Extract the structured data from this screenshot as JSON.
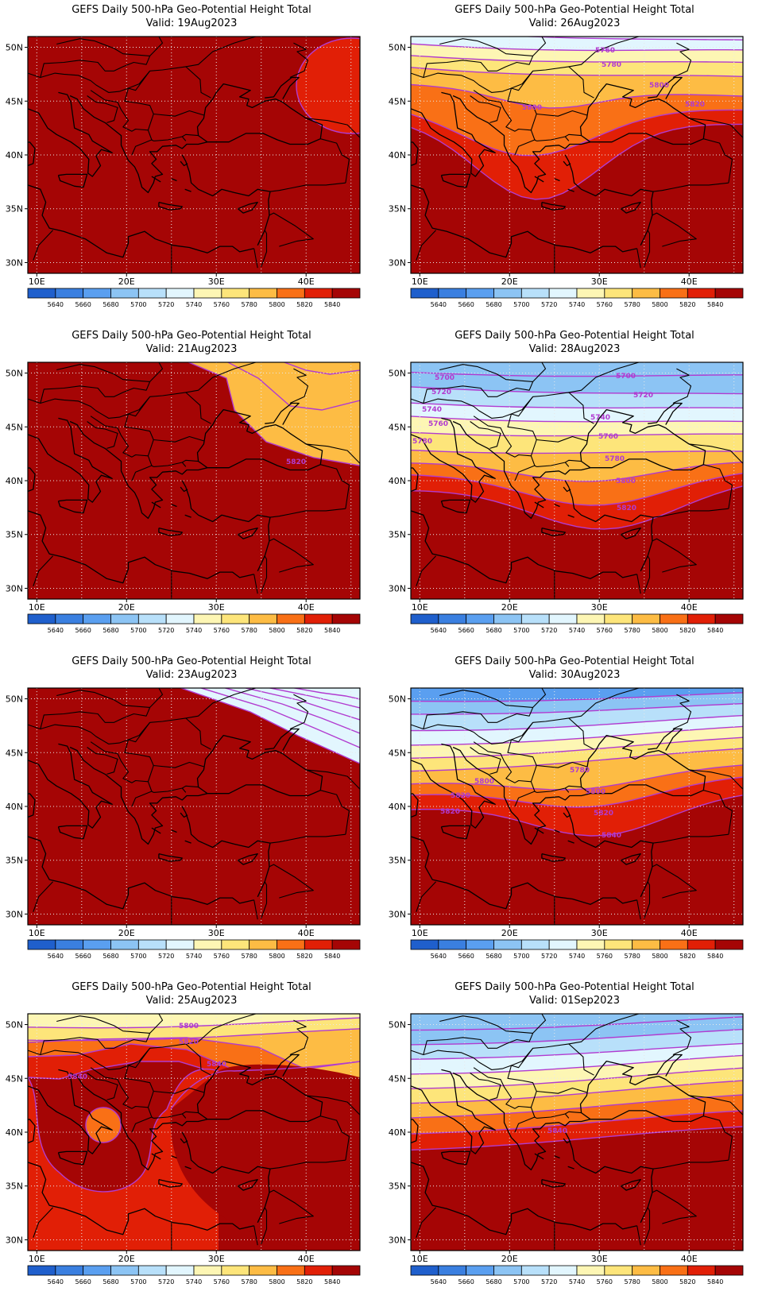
{
  "panels": [
    {
      "title": "GEFS Daily 500-hPa Geo-Potential Height Total",
      "valid": "Valid: 19Aug2023",
      "contour_labels": []
    },
    {
      "title": "GEFS Daily 500-hPa Geo-Potential Height Total",
      "valid": "Valid: 26Aug2023",
      "contour_labels": [
        "5760",
        "5780",
        "5800",
        "5800",
        "5820"
      ]
    },
    {
      "title": "GEFS Daily 500-hPa Geo-Potential Height Total",
      "valid": "Valid: 21Aug2023",
      "contour_labels": [
        "5820"
      ]
    },
    {
      "title": "GEFS Daily 500-hPa Geo-Potential Height Total",
      "valid": "Valid: 28Aug2023",
      "contour_labels": [
        "5700",
        "5700",
        "5720",
        "5720",
        "5740",
        "5740",
        "5760",
        "5760",
        "5780",
        "5780",
        "5800",
        "5820"
      ]
    },
    {
      "title": "GEFS Daily 500-hPa Geo-Potential Height Total",
      "valid": "Valid: 23Aug2023",
      "contour_labels": []
    },
    {
      "title": "GEFS Daily 500-hPa Geo-Potential Height Total",
      "valid": "Valid: 30Aug2023",
      "contour_labels": [
        "5780",
        "5800",
        "5800",
        "5820",
        "5820",
        "5820",
        "5840"
      ]
    },
    {
      "title": "GEFS Daily 500-hPa Geo-Potential Height Total",
      "valid": "Valid: 25Aug2023",
      "contour_labels": [
        "5800",
        "5820",
        "5840",
        "5840"
      ]
    },
    {
      "title": "GEFS Daily 500-hPa Geo-Potential Height Total",
      "valid": "Valid: 01Sep2023",
      "contour_labels": [
        "5840"
      ]
    }
  ],
  "axes": {
    "lat_labels": [
      "50N",
      "45N",
      "40N",
      "35N",
      "30N"
    ],
    "lon_labels": [
      "10E",
      "20E",
      "30E",
      "40E"
    ]
  },
  "colorbar": {
    "labels": [
      "5640",
      "5660",
      "5680",
      "5700",
      "5720",
      "5740",
      "5760",
      "5780",
      "5800",
      "5820",
      "5840"
    ],
    "colors": [
      "#1f5fcc",
      "#3a7fe0",
      "#5a9ff0",
      "#8cc4f4",
      "#b8e0fa",
      "#e2f6fe",
      "#fdf6b4",
      "#fde57a",
      "#fdbc44",
      "#f97016",
      "#e11f06",
      "#a50505"
    ]
  },
  "colors": {
    "contour_line": "#b13bd0",
    "grid": "#e8e8e8",
    "coast": "#000000"
  }
}
